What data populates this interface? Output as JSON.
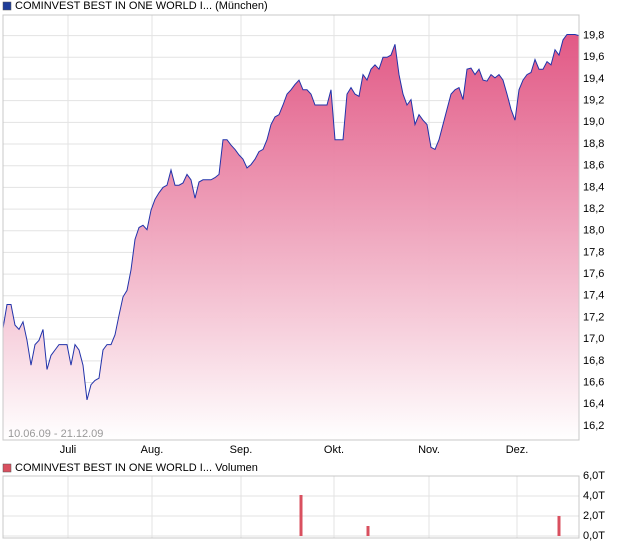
{
  "chart_data": [
    {
      "type": "area",
      "series": [
        {
          "name": "COMINVEST BEST IN ONE WORLD I... (München)",
          "color": "#2233aa",
          "fill": "#e0507f",
          "values": [
            17.1,
            17.32,
            17.32,
            17.13,
            17.09,
            17.16,
            16.99,
            16.76,
            16.95,
            16.99,
            17.09,
            16.72,
            16.85,
            16.9,
            16.95,
            16.95,
            16.95,
            16.76,
            16.95,
            16.9,
            16.76,
            16.44,
            16.58,
            16.62,
            16.64,
            16.9,
            16.95,
            16.95,
            17.04,
            17.22,
            17.39,
            17.45,
            17.64,
            17.92,
            18.03,
            18.05,
            18.01,
            18.19,
            18.29,
            18.35,
            18.4,
            18.42,
            18.56,
            18.42,
            18.42,
            18.44,
            18.52,
            18.47,
            18.3,
            18.45,
            18.47,
            18.47,
            18.47,
            18.49,
            18.52,
            18.84,
            18.84,
            18.79,
            18.75,
            18.7,
            18.66,
            18.58,
            18.61,
            18.66,
            18.73,
            18.75,
            18.84,
            18.98,
            19.05,
            19.07,
            19.16,
            19.26,
            19.3,
            19.35,
            19.39,
            19.3,
            19.3,
            19.26,
            19.16,
            19.16,
            19.16,
            19.16,
            19.3,
            18.84,
            18.84,
            18.84,
            19.26,
            19.32,
            19.26,
            19.24,
            19.44,
            19.39,
            19.49,
            19.53,
            19.49,
            19.6,
            19.6,
            19.62,
            19.72,
            19.44,
            19.26,
            19.16,
            19.21,
            18.98,
            19.07,
            19.02,
            18.98,
            18.77,
            18.75,
            18.84,
            18.98,
            19.12,
            19.26,
            19.3,
            19.32,
            19.21,
            19.49,
            19.5,
            19.44,
            19.49,
            19.39,
            19.38,
            19.44,
            19.41,
            19.44,
            19.39,
            19.26,
            19.12,
            19.02,
            19.3,
            19.39,
            19.44,
            19.46,
            19.58,
            19.49,
            19.49,
            19.56,
            19.53,
            19.67,
            19.62,
            19.76,
            19.81,
            19.81,
            19.81,
            19.8
          ]
        }
      ],
      "xlim": [
        0,
        144
      ],
      "xticks": [
        {
          "value": 16.25,
          "label": "Juli"
        },
        {
          "value": 37.25,
          "label": "Aug."
        },
        {
          "value": 59.5,
          "label": "Sep."
        },
        {
          "value": 82.75,
          "label": "Okt."
        },
        {
          "value": 106.5,
          "label": "Nov."
        },
        {
          "value": 128.5,
          "label": "Dez."
        }
      ],
      "ylim": [
        16.07,
        19.99
      ],
      "yticks": [
        {
          "value": 16.2,
          "label": "16,2"
        },
        {
          "value": 16.4,
          "label": "16,4"
        },
        {
          "value": 16.6,
          "label": "16,6"
        },
        {
          "value": 16.8,
          "label": "16,8"
        },
        {
          "value": 17.0,
          "label": "17,0"
        },
        {
          "value": 17.2,
          "label": "17,2"
        },
        {
          "value": 17.4,
          "label": "17,4"
        },
        {
          "value": 17.6,
          "label": "17,6"
        },
        {
          "value": 17.8,
          "label": "17,8"
        },
        {
          "value": 18.0,
          "label": "18,0"
        },
        {
          "value": 18.2,
          "label": "18,2"
        },
        {
          "value": 18.4,
          "label": "18,4"
        },
        {
          "value": 18.6,
          "label": "18,6"
        },
        {
          "value": 18.8,
          "label": "18,8"
        },
        {
          "value": 19.0,
          "label": "19,0"
        },
        {
          "value": 19.2,
          "label": "19,2"
        },
        {
          "value": 19.4,
          "label": "19,4"
        },
        {
          "value": 19.6,
          "label": "19,6"
        },
        {
          "value": 19.8,
          "label": "19,8"
        }
      ],
      "annotation": "10.06.09 - 21.12.09",
      "grid": true
    },
    {
      "type": "bar",
      "series": [
        {
          "name": "COMINVEST BEST IN ONE WORLD I... Volumen",
          "color": "#d9505f",
          "x": [
            74.5,
            91.25,
            139
          ],
          "values": [
            4.1,
            1.0,
            2.0
          ]
        }
      ],
      "xlim": [
        0,
        144
      ],
      "ylim": [
        -0.2,
        6.0
      ],
      "yticks": [
        {
          "value": 0,
          "label": "0,0T"
        },
        {
          "value": 2,
          "label": "2,0T"
        },
        {
          "value": 4,
          "label": "4,0T"
        },
        {
          "value": 6,
          "label": "6,0T"
        }
      ],
      "grid": true
    }
  ]
}
